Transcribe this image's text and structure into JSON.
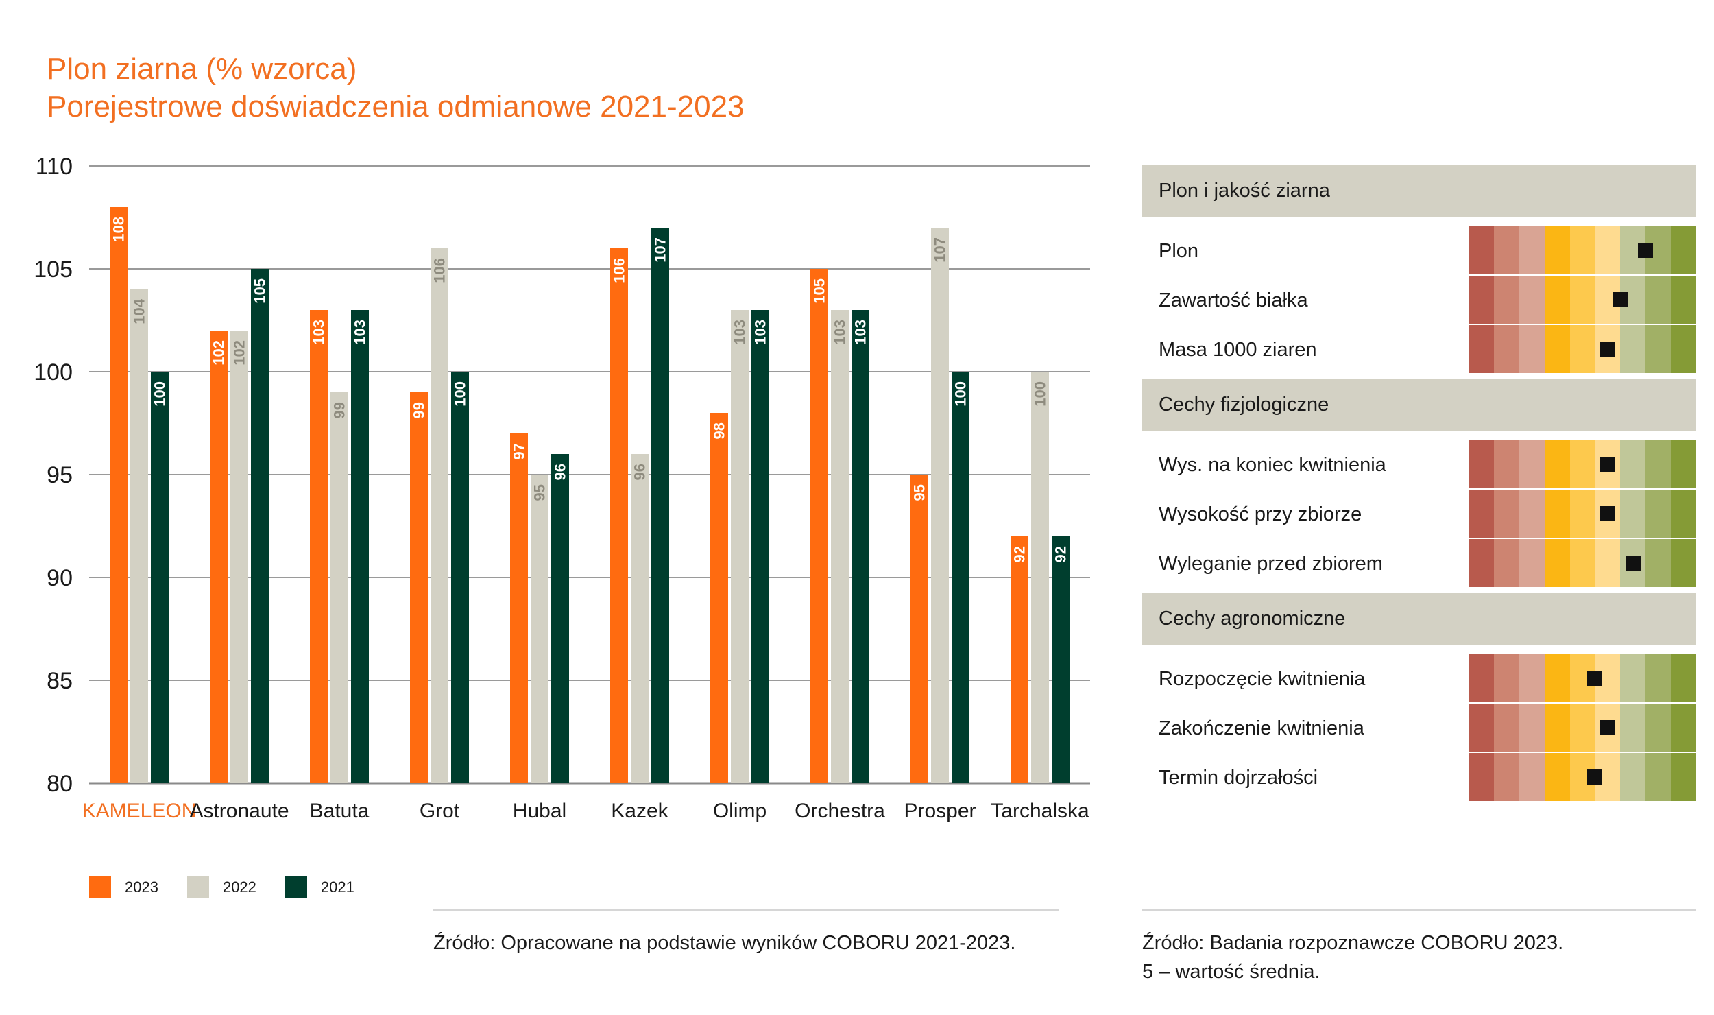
{
  "header": {
    "title": "Plon ziarna (% wzorca)",
    "subtitle": "Porejestrowe doświadczenia odmianowe 2021-2023"
  },
  "chart_data": {
    "type": "bar",
    "title": "Plon ziarna (% wzorca)",
    "subtitle": "Porejestrowe doświadczenia odmianowe 2021-2023",
    "xlabel": "",
    "ylabel": "",
    "ylim": [
      80,
      110
    ],
    "yticks": [
      80,
      85,
      90,
      95,
      100,
      105,
      110
    ],
    "grid": true,
    "legend_position": "bottom-left",
    "categories": [
      "KAMELEON",
      "Astronaute",
      "Batuta",
      "Grot",
      "Hubal",
      "Kazek",
      "Olimp",
      "Orchestra",
      "Prosper",
      "Tarchalska"
    ],
    "highlight_category": "KAMELEON",
    "series": [
      {
        "name": "2023",
        "color": "#ff6b10",
        "label_color": "#ffffff",
        "values": [
          108,
          102,
          103,
          99,
          97,
          106,
          98,
          105,
          95,
          92
        ]
      },
      {
        "name": "2022",
        "color": "#d3d1c4",
        "label_color": "#8e8b7e",
        "values": [
          104,
          102,
          99,
          106,
          95,
          96,
          103,
          103,
          107,
          100
        ]
      },
      {
        "name": "2021",
        "color": "#003e2e",
        "label_color": "#ffffff",
        "values": [
          100,
          105,
          103,
          100,
          96,
          107,
          103,
          103,
          100,
          92
        ]
      }
    ]
  },
  "legend": [
    {
      "label": "2023",
      "color": "#ff6b10"
    },
    {
      "label": "2022",
      "color": "#d3d1c4"
    },
    {
      "label": "2021",
      "color": "#003e2e"
    }
  ],
  "source_left": "Źródło: Opracowane na podstawie wyników COBORU 2021-2023.",
  "traits_panel": {
    "scale_colors": [
      "#b85a4d",
      "#cd8471",
      "#d9a494",
      "#fbb614",
      "#fdc94d",
      "#fedb90",
      "#c0c799",
      "#a1b066",
      "#859b36"
    ],
    "sections": [
      {
        "title": "Plon i jakość ziarna",
        "traits": [
          {
            "label": "Plon",
            "score": 7.5
          },
          {
            "label": "Zawartość białka",
            "score": 6.5
          },
          {
            "label": "Masa 1000 ziaren",
            "score": 6.0
          }
        ]
      },
      {
        "title": "Cechy fizjologiczne",
        "traits": [
          {
            "label": "Wys. na koniec kwitnienia",
            "score": 6.0
          },
          {
            "label": "Wysokość przy zbiorze",
            "score": 6.0
          },
          {
            "label": "Wyleganie przed zbiorem",
            "score": 7.0
          }
        ]
      },
      {
        "title": "Cechy agronomiczne",
        "traits": [
          {
            "label": "Rozpoczęcie kwitnienia",
            "score": 5.5
          },
          {
            "label": "Zakończenie kwitnienia",
            "score": 6.0
          },
          {
            "label": "Termin dojrzałości",
            "score": 5.5
          }
        ]
      }
    ],
    "source_line1": "Źródło: Badania rozpoznawcze COBORU 2023.",
    "source_line2": "5 – wartość średnia."
  }
}
